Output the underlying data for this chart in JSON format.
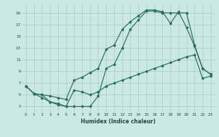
{
  "xlabel": "Humidex (Indice chaleur)",
  "bg_color": "#cce8e4",
  "grid_color": "#a8d0cc",
  "line_color": "#2a7060",
  "xlim": [
    -0.5,
    23.5
  ],
  "ylim": [
    2,
    20.5
  ],
  "xticks": [
    0,
    1,
    2,
    3,
    4,
    5,
    6,
    7,
    8,
    9,
    10,
    11,
    12,
    13,
    14,
    15,
    16,
    17,
    18,
    19,
    20,
    21,
    22,
    23
  ],
  "yticks": [
    3,
    5,
    7,
    9,
    11,
    13,
    15,
    17,
    19
  ],
  "line1_x": [
    0,
    1,
    2,
    3,
    4,
    5,
    6,
    7,
    8,
    9,
    10,
    11,
    12,
    13,
    14,
    15,
    16,
    17,
    18,
    19,
    20,
    21,
    22,
    23
  ],
  "line1_y": [
    6.5,
    5.2,
    4.5,
    3.8,
    3.3,
    3.0,
    3.0,
    3.0,
    3.0,
    4.8,
    9.5,
    10.2,
    13.0,
    16.2,
    17.8,
    19.3,
    19.3,
    19.0,
    19.0,
    19.0,
    19.0,
    13.5,
    9.5,
    8.5
  ],
  "line2_x": [
    0,
    1,
    2,
    3,
    4,
    5,
    6,
    7,
    8,
    9,
    10,
    11,
    12,
    13,
    14,
    15,
    16,
    17,
    18,
    19,
    20,
    21,
    22,
    23
  ],
  "line2_y": [
    6.5,
    5.2,
    5.0,
    4.8,
    4.5,
    4.2,
    7.5,
    8.0,
    8.8,
    9.5,
    12.8,
    13.5,
    16.2,
    17.5,
    18.5,
    19.5,
    19.5,
    19.2,
    17.2,
    19.2,
    16.5,
    13.3,
    9.5,
    8.5
  ],
  "line3_x": [
    0,
    1,
    2,
    3,
    4,
    5,
    6,
    7,
    8,
    9,
    10,
    11,
    12,
    13,
    14,
    15,
    16,
    17,
    18,
    19,
    20,
    21,
    22,
    23
  ],
  "line3_y": [
    6.5,
    5.2,
    5.0,
    3.8,
    3.5,
    3.0,
    5.8,
    5.5,
    5.0,
    5.5,
    6.5,
    7.0,
    7.5,
    8.0,
    8.5,
    9.0,
    9.5,
    10.0,
    10.5,
    11.0,
    11.5,
    11.8,
    7.8,
    8.2
  ]
}
